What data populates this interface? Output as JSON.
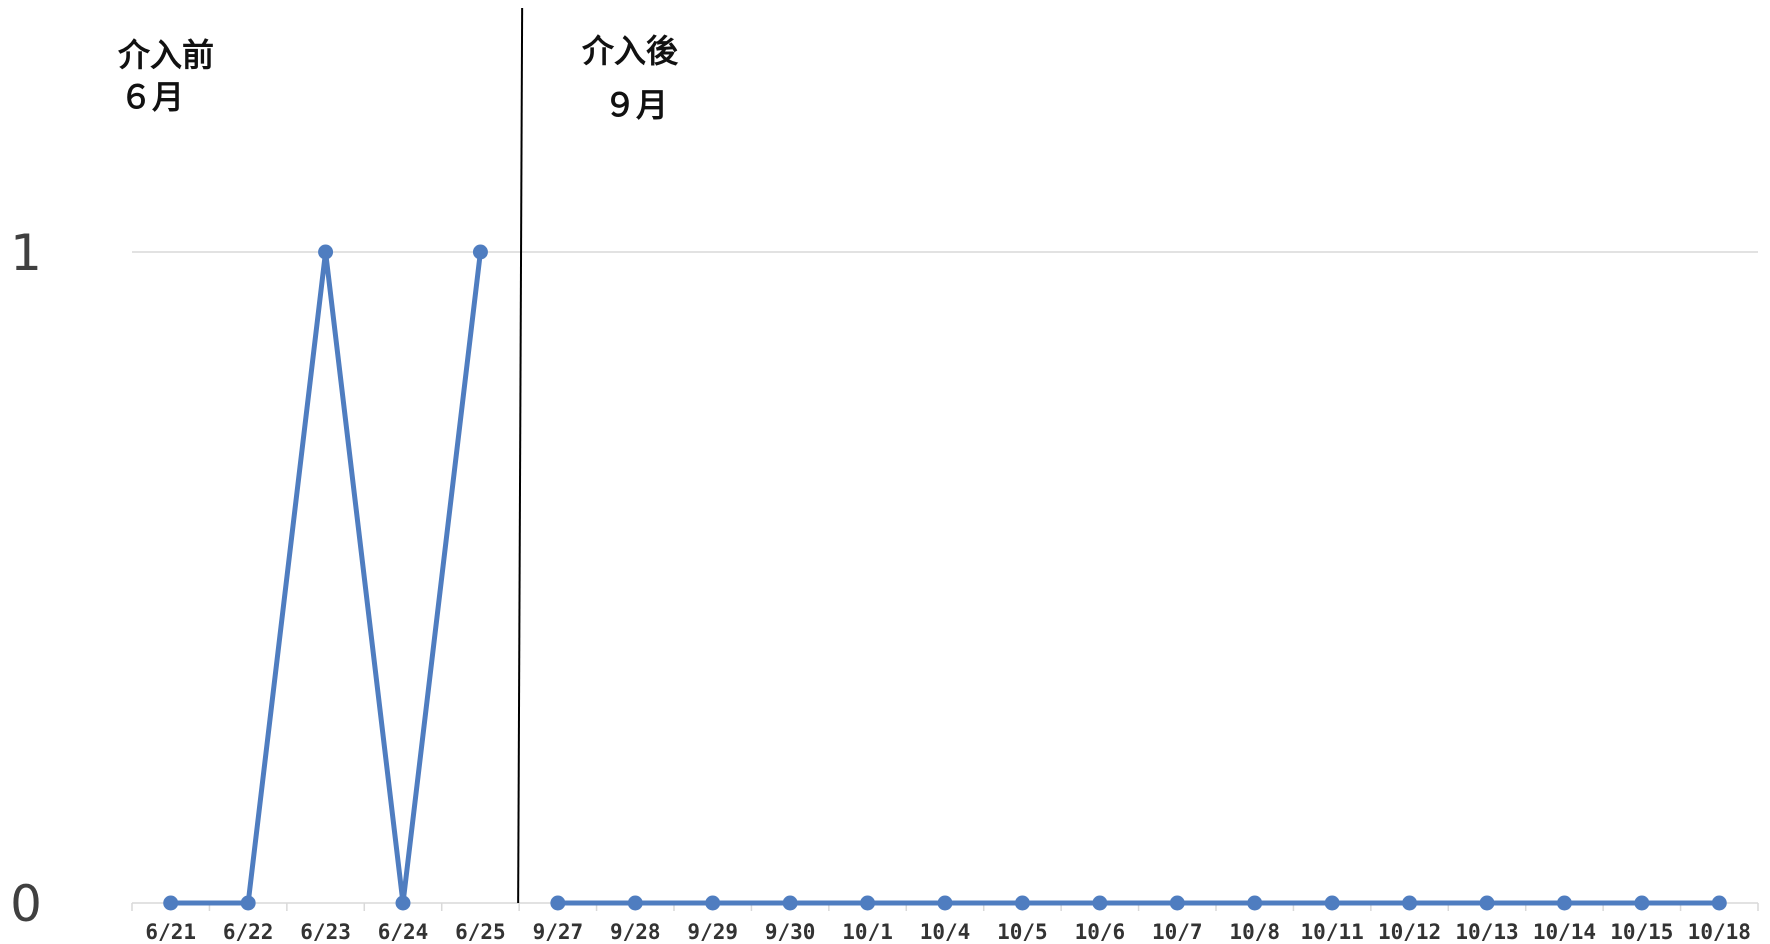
{
  "chart_data": {
    "type": "line",
    "categories": [
      "6/21",
      "6/22",
      "6/23",
      "6/24",
      "6/25",
      "9/27",
      "9/28",
      "9/29",
      "9/30",
      "10/1",
      "10/4",
      "10/5",
      "10/6",
      "10/7",
      "10/8",
      "10/11",
      "10/12",
      "10/13",
      "10/14",
      "10/15",
      "10/18"
    ],
    "segments": [
      {
        "start": 0,
        "end": 4
      },
      {
        "start": 5,
        "end": 20
      }
    ],
    "values": [
      0,
      0,
      1,
      0,
      1,
      0,
      0,
      0,
      0,
      0,
      0,
      0,
      0,
      0,
      0,
      0,
      0,
      0,
      0,
      0,
      0
    ],
    "ylim": [
      0,
      1
    ],
    "yticks": [
      "0",
      "1"
    ],
    "gridlines": "horizontal",
    "series_color": "#4F7DC0",
    "grid_color": "#D9D9D9",
    "divider_color": "#000000",
    "annotations": {
      "before": {
        "line1": "介入前",
        "line2": "６月"
      },
      "after": {
        "line1": "介入後",
        "line2": "９月"
      }
    },
    "xlabel": "",
    "ylabel": "",
    "title": ""
  }
}
